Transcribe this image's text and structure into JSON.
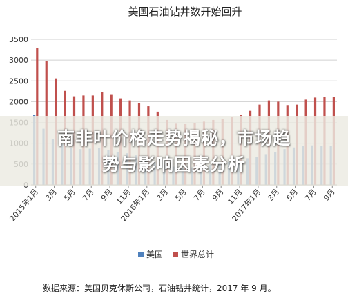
{
  "chart_data": {
    "type": "bar",
    "title": "美国石油钻井数开始回升",
    "ylim": [
      0,
      3500
    ],
    "yticks": [
      0,
      500,
      1000,
      1500,
      2000,
      2500,
      3000,
      3500
    ],
    "grid": true,
    "legend_position": "bottom",
    "tick_labels": [
      "2015年1月",
      "3月",
      "5月",
      "7月",
      "9月",
      "11月",
      "2016年1月",
      "3月",
      "5月",
      "7月",
      "9月",
      "11月",
      "2017年1月",
      "3月",
      "5月",
      "7月",
      "9月"
    ],
    "categories": [
      "2015-01",
      "2015-02",
      "2015-03",
      "2015-04",
      "2015-05",
      "2015-06",
      "2015-07",
      "2015-08",
      "2015-09",
      "2015-10",
      "2015-11",
      "2015-12",
      "2016-01",
      "2016-02",
      "2016-03",
      "2016-04",
      "2016-05",
      "2016-06",
      "2016-07",
      "2016-08",
      "2016-09",
      "2016-10",
      "2016-11",
      "2016-12",
      "2017-01",
      "2017-02",
      "2017-03",
      "2017-04",
      "2017-05",
      "2017-06",
      "2017-07",
      "2017-08",
      "2017-09"
    ],
    "series": [
      {
        "name": "美国",
        "color": "#4f81bd",
        "values": [
          1680,
          1350,
          1110,
          980,
          890,
          860,
          870,
          880,
          840,
          790,
          760,
          710,
          650,
          540,
          480,
          440,
          410,
          420,
          450,
          480,
          510,
          550,
          590,
          640,
          680,
          740,
          790,
          860,
          900,
          930,
          950,
          945,
          935
        ]
      },
      {
        "name": "世界总计",
        "color": "#c0504d",
        "values": [
          3300,
          2980,
          2560,
          2260,
          2130,
          2150,
          2150,
          2230,
          2180,
          2080,
          2030,
          1970,
          1890,
          1760,
          1560,
          1470,
          1460,
          1480,
          1520,
          1560,
          1590,
          1640,
          1680,
          1780,
          1930,
          2030,
          2000,
          1920,
          1930,
          2050,
          2100,
          2110,
          2110
        ]
      }
    ]
  },
  "source_note": "数据来源：美国贝克休斯公司，石油钻井统计，2017 年 9 月。",
  "overlay": {
    "line1": "南非叶价格走势揭秘，市场趋",
    "line2": "势与影响因素分析"
  }
}
